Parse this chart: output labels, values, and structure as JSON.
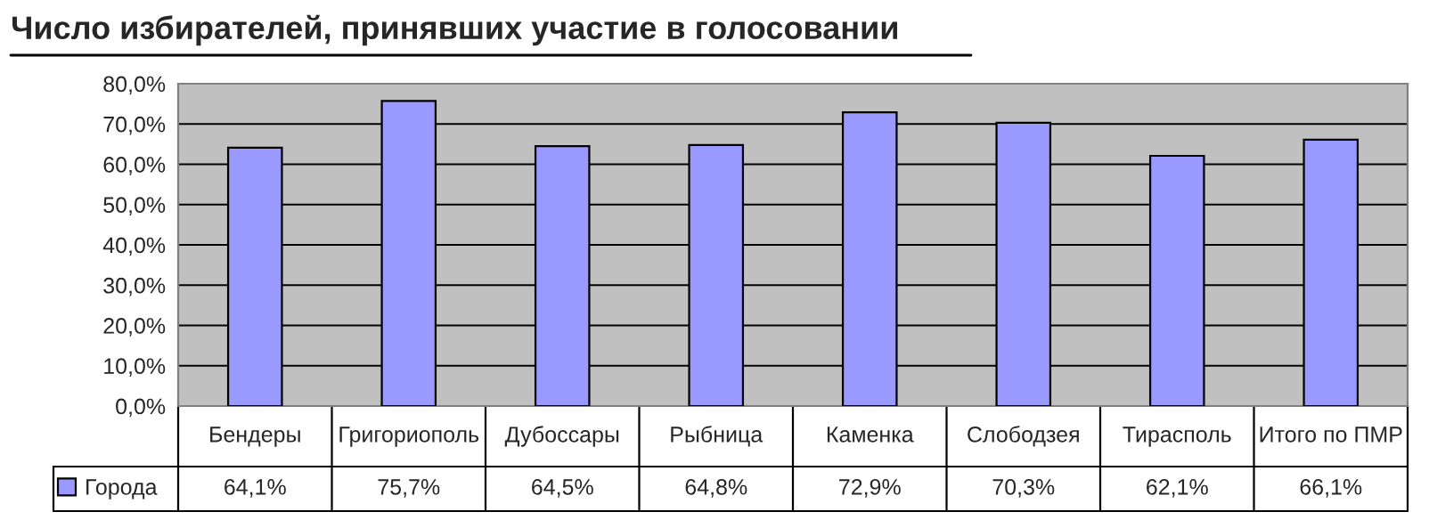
{
  "chart_data": {
    "type": "bar",
    "title": "Число избирателей, принявших участие в голосовании",
    "categories": [
      "Бендеры",
      "Григориополь",
      "Дубоссары",
      "Рыбница",
      "Каменка",
      "Слободзея",
      "Тирасполь",
      "Итого по ПМР"
    ],
    "series": [
      {
        "name": "Города",
        "color": "#9999ff",
        "values": [
          64.1,
          75.7,
          64.5,
          64.8,
          72.9,
          70.3,
          62.1,
          66.1
        ],
        "value_labels": [
          "64,1%",
          "75,7%",
          "64,5%",
          "64,8%",
          "72,9%",
          "70,3%",
          "62,1%",
          "66,1%"
        ]
      }
    ],
    "ylim": [
      0,
      80
    ],
    "yticks": [
      {
        "value": 0,
        "label": "0,0%"
      },
      {
        "value": 10,
        "label": "10,0%"
      },
      {
        "value": 20,
        "label": "20,0%"
      },
      {
        "value": 30,
        "label": "30,0%"
      },
      {
        "value": 40,
        "label": "40,0%"
      },
      {
        "value": 50,
        "label": "50,0%"
      },
      {
        "value": 60,
        "label": "60,0%"
      },
      {
        "value": 70,
        "label": "70,0%"
      },
      {
        "value": 80,
        "label": "80,0%"
      }
    ],
    "grid": "y",
    "legend": "bottom left"
  }
}
